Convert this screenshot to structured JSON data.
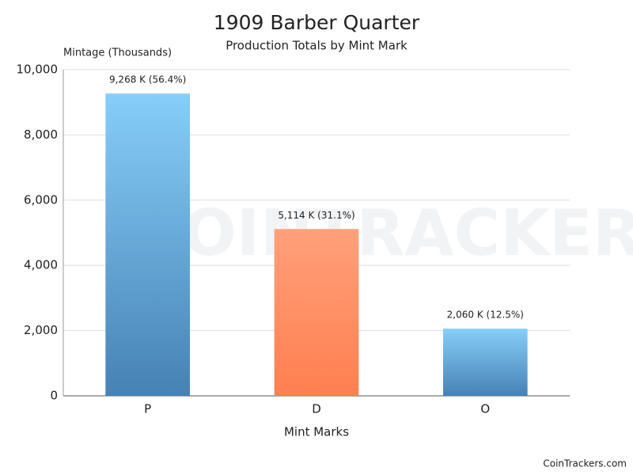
{
  "chart_data": {
    "type": "bar",
    "title": "1909 Barber Quarter",
    "subtitle": "Production Totals by Mint Mark",
    "y_label": "Mintage (Thousands)",
    "x_label": "Mint Marks",
    "categories": [
      "P",
      "D",
      "O"
    ],
    "values": [
      9268,
      5114,
      2060
    ],
    "value_labels": [
      "9,268 K (56.4%)",
      "5,114 K (31.1%)",
      "2,060 K (12.5%)"
    ],
    "gradients": [
      [
        "#87cefa",
        "#4682b4"
      ],
      [
        "#ffa07a",
        "#ff7f50"
      ],
      [
        "#87cefa",
        "#4682b4"
      ]
    ],
    "ylim": [
      0,
      10000
    ],
    "yticks": [
      0,
      {
        "value": 2000,
        "label": "2,000"
      },
      {
        "value": 4000,
        "label": "4,000"
      },
      {
        "value": 6000,
        "label": "6,000"
      },
      {
        "value": 8000,
        "label": "8,000"
      },
      {
        "value": 10000,
        "label": "10,000"
      }
    ],
    "grid": true,
    "watermark": "COINTRACKERS",
    "credit": "CoinTrackers.com"
  }
}
